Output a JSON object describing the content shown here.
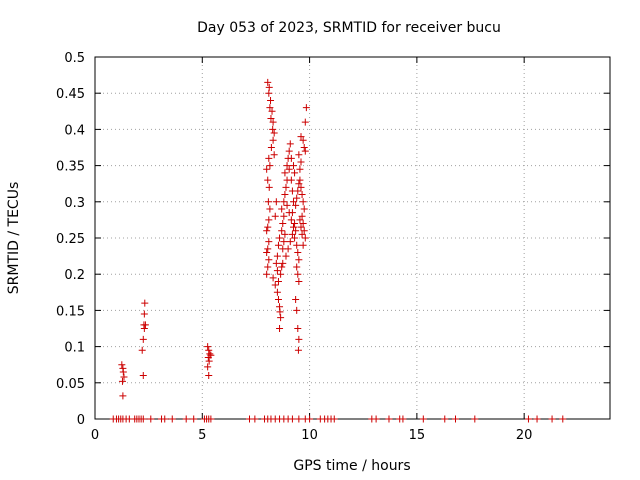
{
  "chart_data": {
    "type": "scatter",
    "title": "Day 053 of 2023, SRMTID for receiver bucu",
    "xlabel": "GPS time / hours",
    "ylabel": "SRMTID / TECUs",
    "xlim": [
      0,
      24
    ],
    "ylim": [
      0,
      0.5
    ],
    "x_ticks": [
      0,
      5,
      10,
      15,
      20
    ],
    "y_ticks": [
      0,
      0.05,
      0.1,
      0.15,
      0.2,
      0.25,
      0.3,
      0.35,
      0.4,
      0.45,
      0.5
    ],
    "x_tick_labels": [
      "0",
      "5",
      "10",
      "15",
      "20"
    ],
    "y_tick_labels": [
      "0",
      "0.05",
      "0.1",
      "0.15",
      "0.2",
      "0.25",
      "0.3",
      "0.35",
      "0.4",
      "0.45",
      "0.5"
    ],
    "grid": true,
    "marker": "plus",
    "series": [
      {
        "color": "#cc0000",
        "points": [
          [
            0.85,
            0
          ],
          [
            1.0,
            0
          ],
          [
            1.1,
            0
          ],
          [
            1.2,
            0
          ],
          [
            1.3,
            0
          ],
          [
            1.45,
            0
          ],
          [
            1.6,
            0
          ],
          [
            1.85,
            0
          ],
          [
            1.95,
            0
          ],
          [
            2.05,
            0
          ],
          [
            2.15,
            0
          ],
          [
            2.25,
            0
          ],
          [
            2.6,
            0
          ],
          [
            3.1,
            0
          ],
          [
            3.25,
            0
          ],
          [
            3.6,
            0
          ],
          [
            4.25,
            0
          ],
          [
            4.6,
            0
          ],
          [
            5.1,
            0
          ],
          [
            5.2,
            0
          ],
          [
            5.3,
            0
          ],
          [
            5.4,
            0
          ],
          [
            7.2,
            0
          ],
          [
            7.45,
            0
          ],
          [
            7.9,
            0
          ],
          [
            8.05,
            0
          ],
          [
            8.2,
            0
          ],
          [
            8.4,
            0
          ],
          [
            8.6,
            0
          ],
          [
            8.8,
            0
          ],
          [
            9.0,
            0
          ],
          [
            9.2,
            0
          ],
          [
            9.5,
            0
          ],
          [
            9.8,
            0
          ],
          [
            10.0,
            0
          ],
          [
            10.5,
            0
          ],
          [
            10.7,
            0
          ],
          [
            10.85,
            0
          ],
          [
            11.0,
            0
          ],
          [
            11.15,
            0
          ],
          [
            12.9,
            0
          ],
          [
            13.1,
            0
          ],
          [
            13.7,
            0
          ],
          [
            14.2,
            0
          ],
          [
            14.35,
            0
          ],
          [
            15.3,
            0
          ],
          [
            16.3,
            0
          ],
          [
            16.8,
            0
          ],
          [
            17.7,
            0
          ],
          [
            20.2,
            0
          ],
          [
            20.6,
            0
          ],
          [
            21.3,
            0
          ],
          [
            21.8,
            0
          ],
          [
            1.25,
            0.075
          ],
          [
            1.3,
            0.07
          ],
          [
            1.32,
            0.065
          ],
          [
            1.35,
            0.058
          ],
          [
            1.28,
            0.052
          ],
          [
            1.3,
            0.032
          ],
          [
            2.2,
            0.095
          ],
          [
            2.25,
            0.11
          ],
          [
            2.3,
            0.125
          ],
          [
            2.28,
            0.13
          ],
          [
            2.35,
            0.13
          ],
          [
            2.3,
            0.145
          ],
          [
            2.32,
            0.16
          ],
          [
            2.25,
            0.06
          ],
          [
            5.25,
            0.1
          ],
          [
            5.3,
            0.095
          ],
          [
            5.35,
            0.09
          ],
          [
            5.28,
            0.085
          ],
          [
            5.32,
            0.08
          ],
          [
            5.25,
            0.072
          ],
          [
            5.3,
            0.06
          ],
          [
            5.4,
            0.088
          ],
          [
            8.05,
            0.465
          ],
          [
            8.12,
            0.458
          ],
          [
            8.1,
            0.45
          ],
          [
            8.18,
            0.44
          ],
          [
            8.15,
            0.43
          ],
          [
            8.25,
            0.425
          ],
          [
            8.2,
            0.415
          ],
          [
            8.3,
            0.41
          ],
          [
            8.28,
            0.4
          ],
          [
            8.35,
            0.395
          ],
          [
            8.3,
            0.385
          ],
          [
            8.22,
            0.375
          ],
          [
            8.35,
            0.365
          ],
          [
            8.1,
            0.36
          ],
          [
            8.15,
            0.35
          ],
          [
            8.0,
            0.345
          ],
          [
            8.05,
            0.33
          ],
          [
            8.12,
            0.32
          ],
          [
            8.08,
            0.3
          ],
          [
            8.15,
            0.29
          ],
          [
            8.1,
            0.275
          ],
          [
            8.05,
            0.265
          ],
          [
            8.0,
            0.26
          ],
          [
            8.1,
            0.245
          ],
          [
            8.05,
            0.235
          ],
          [
            8.0,
            0.23
          ],
          [
            8.1,
            0.22
          ],
          [
            8.05,
            0.21
          ],
          [
            8.0,
            0.2
          ],
          [
            8.3,
            0.195
          ],
          [
            8.4,
            0.185
          ],
          [
            8.5,
            0.175
          ],
          [
            8.55,
            0.165
          ],
          [
            8.6,
            0.155
          ],
          [
            8.62,
            0.148
          ],
          [
            8.65,
            0.14
          ],
          [
            8.6,
            0.125
          ],
          [
            8.45,
            0.215
          ],
          [
            8.5,
            0.225
          ],
          [
            8.55,
            0.24
          ],
          [
            8.6,
            0.25
          ],
          [
            8.7,
            0.26
          ],
          [
            8.75,
            0.27
          ],
          [
            8.8,
            0.28
          ],
          [
            8.7,
            0.29
          ],
          [
            8.8,
            0.3
          ],
          [
            8.85,
            0.31
          ],
          [
            8.9,
            0.32
          ],
          [
            8.95,
            0.33
          ],
          [
            8.85,
            0.34
          ],
          [
            8.95,
            0.35
          ],
          [
            9.0,
            0.36
          ],
          [
            9.05,
            0.37
          ],
          [
            9.1,
            0.38
          ],
          [
            9.05,
            0.345
          ],
          [
            9.15,
            0.33
          ],
          [
            9.2,
            0.315
          ],
          [
            9.25,
            0.3
          ],
          [
            9.2,
            0.285
          ],
          [
            9.3,
            0.27
          ],
          [
            9.35,
            0.26
          ],
          [
            9.3,
            0.25
          ],
          [
            9.4,
            0.24
          ],
          [
            9.45,
            0.23
          ],
          [
            9.5,
            0.22
          ],
          [
            9.4,
            0.21
          ],
          [
            9.45,
            0.2
          ],
          [
            9.5,
            0.19
          ],
          [
            9.35,
            0.165
          ],
          [
            9.4,
            0.15
          ],
          [
            9.45,
            0.125
          ],
          [
            9.5,
            0.11
          ],
          [
            9.48,
            0.095
          ],
          [
            9.55,
            0.33
          ],
          [
            9.6,
            0.32
          ],
          [
            9.65,
            0.31
          ],
          [
            9.7,
            0.3
          ],
          [
            9.75,
            0.29
          ],
          [
            9.65,
            0.28
          ],
          [
            9.7,
            0.27
          ],
          [
            9.75,
            0.26
          ],
          [
            9.8,
            0.25
          ],
          [
            9.7,
            0.24
          ],
          [
            9.6,
            0.39
          ],
          [
            9.7,
            0.385
          ],
          [
            9.75,
            0.375
          ],
          [
            9.8,
            0.37
          ],
          [
            9.85,
            0.43
          ],
          [
            9.8,
            0.41
          ],
          [
            9.55,
            0.345
          ],
          [
            9.6,
            0.355
          ],
          [
            9.5,
            0.365
          ],
          [
            8.9,
            0.225
          ],
          [
            9.0,
            0.235
          ],
          [
            9.1,
            0.245
          ],
          [
            9.2,
            0.255
          ],
          [
            9.25,
            0.265
          ],
          [
            9.15,
            0.275
          ],
          [
            9.05,
            0.285
          ],
          [
            8.95,
            0.295
          ],
          [
            8.75,
            0.235
          ],
          [
            8.8,
            0.245
          ],
          [
            8.85,
            0.255
          ],
          [
            9.35,
            0.295
          ],
          [
            9.4,
            0.305
          ],
          [
            9.45,
            0.315
          ],
          [
            9.5,
            0.325
          ],
          [
            9.55,
            0.275
          ],
          [
            9.6,
            0.265
          ],
          [
            9.65,
            0.255
          ],
          [
            9.3,
            0.34
          ],
          [
            9.25,
            0.35
          ],
          [
            9.15,
            0.36
          ],
          [
            8.65,
            0.2
          ],
          [
            8.7,
            0.21
          ],
          [
            8.75,
            0.215
          ],
          [
            8.55,
            0.19
          ],
          [
            8.5,
            0.205
          ],
          [
            8.4,
            0.28
          ],
          [
            8.45,
            0.3
          ]
        ]
      }
    ]
  }
}
